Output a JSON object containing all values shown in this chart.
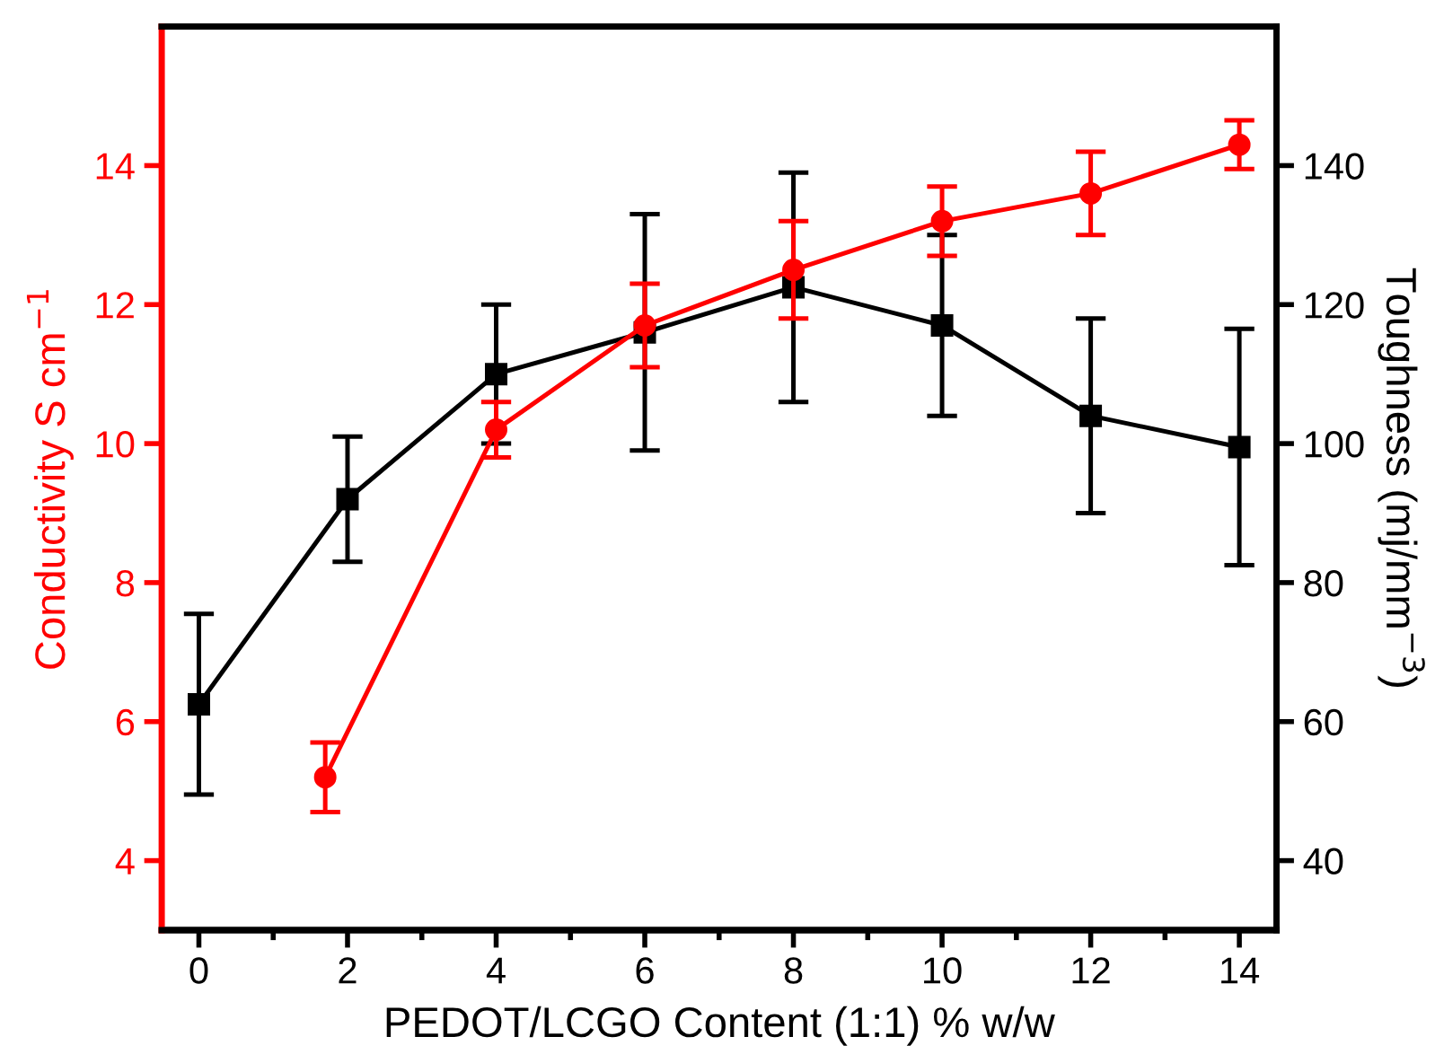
{
  "chart_data": {
    "type": "line",
    "xlabel": "PEDOT/LCGO Content (1:1) % w/w",
    "ylabel": "Conductivity S cm$^{−1}$",
    "y2label": "Toughness (mj/mm$^{−3}$)",
    "xlim": [
      -0.5,
      14.5
    ],
    "xticks": [
      0,
      {
        "value": 1,
        "label": null
      },
      2,
      {
        "value": 3,
        "label": null
      },
      4,
      {
        "value": 5,
        "label": null
      },
      6,
      {
        "value": 7,
        "label": null
      },
      8,
      {
        "value": 9,
        "label": null
      },
      10,
      {
        "value": 11,
        "label": null
      },
      12,
      {
        "value": 13,
        "label": null
      },
      14
    ],
    "ylim": [
      3,
      16
    ],
    "yticks": [
      4,
      6,
      8,
      10,
      12,
      14
    ],
    "y2lim": [
      30,
      160
    ],
    "y2ticks": [
      40,
      60,
      80,
      100,
      120,
      140
    ],
    "line_style": "solid",
    "series": [
      {
        "color": "#ff0000",
        "axis": "y",
        "marker": "circle",
        "x": [
          1.7,
          4,
          6,
          8,
          10,
          12,
          14
        ],
        "values": [
          5.2,
          10.2,
          11.7,
          12.5,
          13.2,
          13.6,
          14.3
        ],
        "errors": [
          0.5,
          0.4,
          0.6,
          0.7,
          0.5,
          0.6,
          0.35
        ]
      },
      {
        "color": "#000000",
        "axis": "y2",
        "marker": "square",
        "x": [
          0,
          2,
          4,
          6,
          8,
          10,
          12,
          14
        ],
        "values": [
          62.5,
          92,
          110,
          116,
          122.5,
          117,
          104,
          99.5
        ],
        "errors": [
          13,
          9,
          10,
          17,
          16.5,
          13,
          14,
          17
        ]
      }
    ]
  }
}
